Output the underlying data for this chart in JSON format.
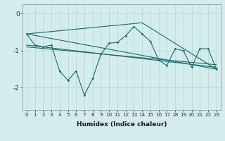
{
  "xlabel": "Humidex (Indice chaleur)",
  "bg_color": "#d4ecec",
  "line_color": "#1a6b6b",
  "grid_color": "#b8d8d8",
  "x_ticks": [
    0,
    1,
    2,
    3,
    4,
    5,
    6,
    7,
    8,
    9,
    10,
    11,
    12,
    13,
    14,
    15,
    16,
    17,
    18,
    19,
    20,
    21,
    22,
    23
  ],
  "y_ticks": [
    -2,
    -1,
    0
  ],
  "ylim": [
    -2.6,
    0.25
  ],
  "xlim": [
    -0.5,
    23.5
  ],
  "y_main": [
    -0.55,
    -0.85,
    -0.9,
    -0.85,
    -1.55,
    -1.8,
    -1.55,
    -2.2,
    -1.75,
    -1.1,
    -0.8,
    -0.78,
    -0.6,
    -0.35,
    -0.55,
    -0.75,
    -1.25,
    -1.4,
    -0.95,
    -1.0,
    -1.45,
    -0.95,
    -0.95,
    -1.5
  ],
  "trend1_x": [
    0,
    23
  ],
  "trend1_y": [
    -0.55,
    -1.5
  ],
  "trend2_x": [
    0,
    23
  ],
  "trend2_y": [
    -0.85,
    -1.45
  ],
  "trend3_x": [
    0,
    23
  ],
  "trend3_y": [
    -0.9,
    -1.38
  ],
  "trend4_x": [
    0,
    14,
    23
  ],
  "trend4_y": [
    -0.55,
    -0.25,
    -1.5
  ],
  "xlabel_fontsize": 6.5,
  "tick_fontsize": 5.2
}
